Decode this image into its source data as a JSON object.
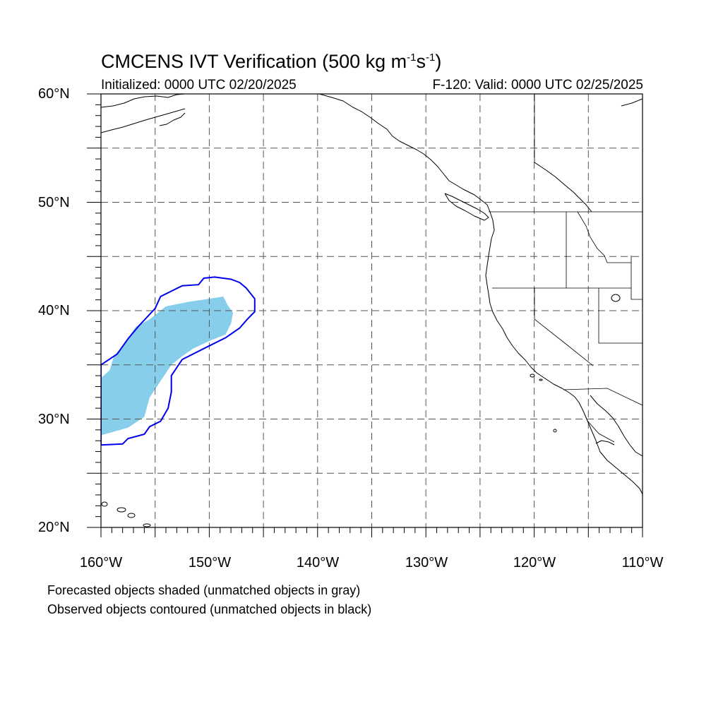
{
  "title": {
    "text": "CMCENS IVT Verification (500 kg m",
    "sup1": "-1",
    "mid": "s",
    "sup2": "-1",
    "end": ")"
  },
  "initialized": "Initialized: 0000 UTC 02/20/2025",
  "valid": "F-120: Valid: 0000 UTC 02/25/2025",
  "lat_labels": [
    "60°N",
    "50°N",
    "40°N",
    "30°N",
    "20°N"
  ],
  "lon_labels": [
    "160°W",
    "150°W",
    "140°W",
    "130°W",
    "120°W",
    "110°W"
  ],
  "legend": {
    "line1": "Forecasted objects shaded (unmatched objects in gray)",
    "line2": "Observed objects contoured (unmatched objects in black)"
  },
  "map_extent": {
    "lon_min": -160,
    "lon_max": -110,
    "lat_min": 20,
    "lat_max": 60
  },
  "colors": {
    "forecast_fill": "#87ceeb",
    "observed_contour": "#0000ee",
    "coastline": "#000000",
    "grid": "#555555"
  },
  "forecast_object": {
    "matched": true,
    "outline_lonlat": [
      [
        -160,
        28.5
      ],
      [
        -157.5,
        29.2
      ],
      [
        -156,
        30.2
      ],
      [
        -155.5,
        32
      ],
      [
        -154.5,
        33.5
      ],
      [
        -153.5,
        35
      ],
      [
        -152.5,
        35.8
      ],
      [
        -151.5,
        36.5
      ],
      [
        -150,
        37.2
      ],
      [
        -148.5,
        37.8
      ],
      [
        -148,
        38.8
      ],
      [
        -147.8,
        39.8
      ],
      [
        -148.3,
        40.5
      ],
      [
        -148.7,
        41.3
      ],
      [
        -150,
        41.1
      ],
      [
        -152,
        40.8
      ],
      [
        -154,
        40.4
      ],
      [
        -155.5,
        39.2
      ],
      [
        -156.8,
        38.5
      ],
      [
        -157.8,
        37
      ],
      [
        -158.8,
        35.8
      ],
      [
        -159.2,
        34.5
      ],
      [
        -160,
        33.8
      ]
    ]
  },
  "observed_object": {
    "matched": true,
    "outline_lonlat": [
      [
        -160,
        27.6
      ],
      [
        -158,
        27.7
      ],
      [
        -157.5,
        28.2
      ],
      [
        -156,
        28.6
      ],
      [
        -155.5,
        29.3
      ],
      [
        -154.5,
        29.8
      ],
      [
        -153.8,
        31
      ],
      [
        -153.5,
        32.5
      ],
      [
        -153.5,
        34
      ],
      [
        -152.5,
        35.5
      ],
      [
        -150.5,
        36.5
      ],
      [
        -148.5,
        37.5
      ],
      [
        -147.2,
        38.4
      ],
      [
        -146.5,
        39.2
      ],
      [
        -145.8,
        39.9
      ],
      [
        -145.8,
        41.1
      ],
      [
        -146.6,
        42.1
      ],
      [
        -147.2,
        42.6
      ],
      [
        -148,
        42.9
      ],
      [
        -149.5,
        43.1
      ],
      [
        -150.5,
        43
      ],
      [
        -151,
        42.4
      ],
      [
        -152.5,
        42.3
      ],
      [
        -154.5,
        41.3
      ],
      [
        -155,
        40.2
      ],
      [
        -156.5,
        38.6
      ],
      [
        -157.5,
        37.4
      ],
      [
        -158.5,
        36
      ],
      [
        -160,
        35
      ]
    ]
  },
  "grid": {
    "lon_lines": [
      -155,
      -150,
      -145,
      -140,
      -135,
      -130,
      -125,
      -120,
      -115
    ],
    "lat_lines": [
      25,
      30,
      35,
      40,
      45,
      50,
      55
    ]
  }
}
